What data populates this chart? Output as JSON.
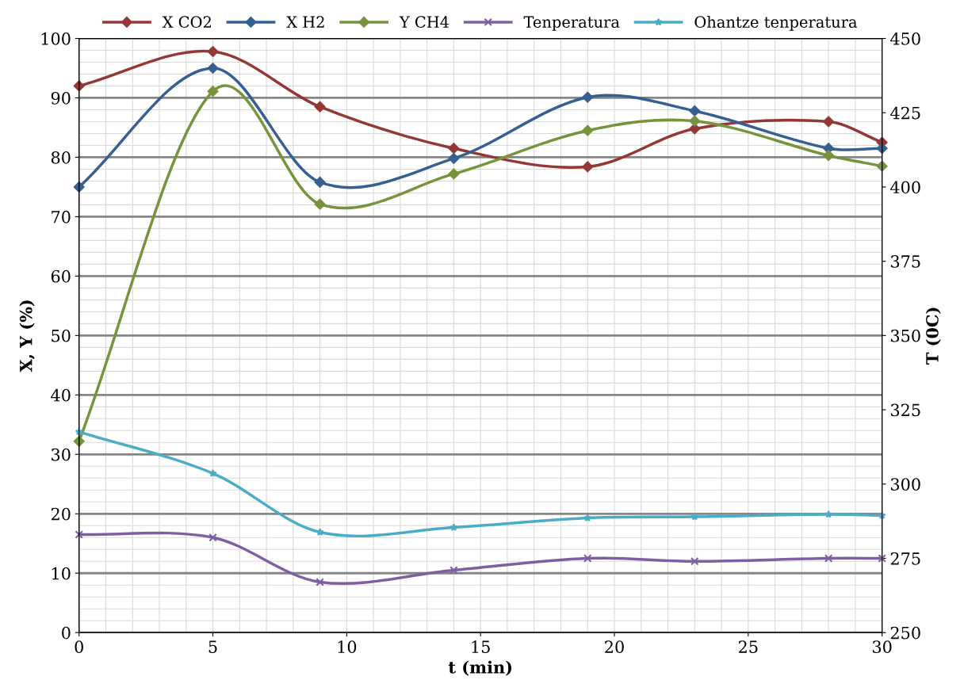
{
  "chart_data": {
    "type": "line",
    "xlabel": "t (min)",
    "ylabel": "X, Y (%)",
    "y2label": "T (0C)",
    "x": [
      0,
      5,
      9,
      14,
      19,
      23,
      28,
      30
    ],
    "xlim": [
      0,
      30
    ],
    "xticks": [
      0,
      5,
      10,
      15,
      20,
      25,
      30
    ],
    "ylim": [
      0,
      100
    ],
    "yticks": [
      0,
      10,
      20,
      30,
      40,
      50,
      60,
      70,
      80,
      90,
      100
    ],
    "y2lim": [
      250,
      450
    ],
    "y2ticks": [
      250,
      275,
      300,
      325,
      350,
      375,
      400,
      425,
      450
    ],
    "grid": true,
    "legend": "top",
    "series": [
      {
        "name": "X CO2",
        "color": "#953735",
        "marker": "diamond",
        "values": [
          92,
          97.8,
          88.5,
          81.5,
          78.4,
          84.8,
          86,
          82.5
        ]
      },
      {
        "name": "X H2",
        "color": "#376092",
        "marker": "diamond",
        "values": [
          75,
          95,
          75.8,
          79.8,
          90.1,
          87.8,
          81.5,
          81.5
        ]
      },
      {
        "name": "Y CH4",
        "color": "#77933c",
        "marker": "diamond",
        "values": [
          32.2,
          91.1,
          72.1,
          77.2,
          84.5,
          86.1,
          80.3,
          78.5
        ]
      },
      {
        "name": "Tenperatura",
        "color": "#7f5f9f",
        "marker": "cross",
        "axis": "y2",
        "values": [
          283,
          282,
          267,
          271,
          275,
          274,
          275,
          275
        ]
      },
      {
        "name": "Ohantze tenperatura",
        "color": "#4bacc6",
        "marker": "star",
        "axis": "y2",
        "values": [
          317.6,
          303.6,
          283.8,
          285.4,
          288.6,
          289,
          289.8,
          289.4
        ]
      }
    ]
  }
}
